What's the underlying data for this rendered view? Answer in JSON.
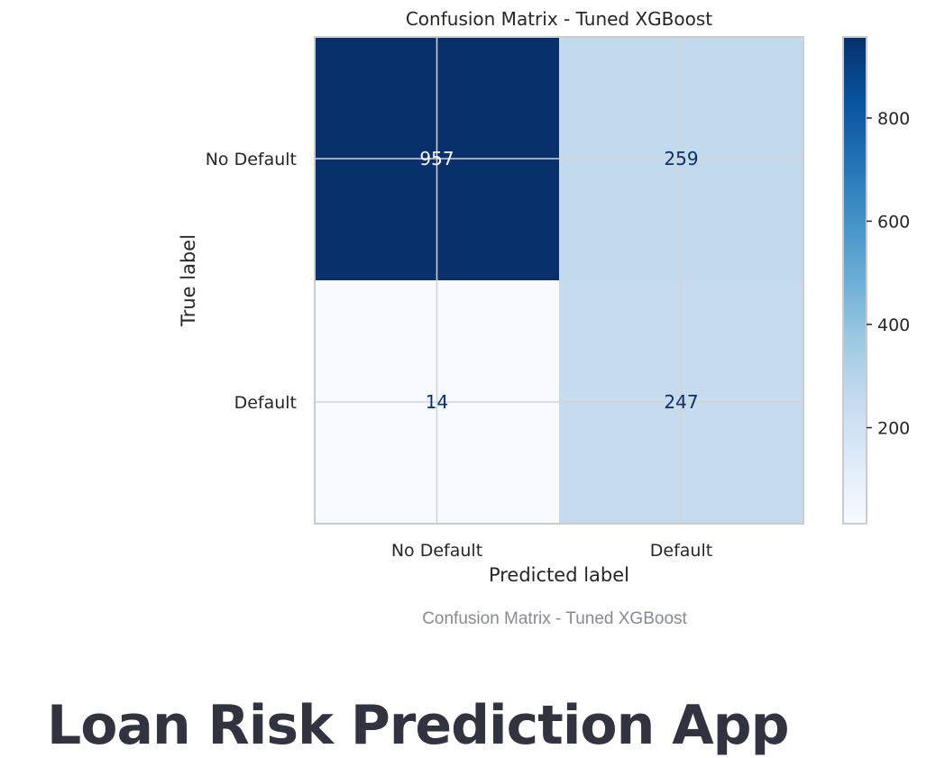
{
  "chart_data": {
    "type": "heatmap",
    "title": "Confusion Matrix - Tuned XGBoost",
    "xlabel": "Predicted label",
    "ylabel": "True label",
    "x_categories": [
      "No Default",
      "Default"
    ],
    "y_categories": [
      "No Default",
      "Default"
    ],
    "values": [
      [
        957,
        259
      ],
      [
        14,
        247
      ]
    ],
    "colormap": "Blues",
    "colorbar": {
      "ticks": [
        200,
        400,
        600,
        800
      ],
      "range": [
        14,
        957
      ]
    },
    "grid": true
  },
  "caption": "Confusion Matrix - Tuned XGBoost",
  "app_title": "Loan Risk Prediction App",
  "colors": {
    "low": "#f7fbff",
    "mid": "#c3daee",
    "high": "#08306b",
    "text_dark": "#31333f",
    "caption": "#878a93",
    "axis_text": "#262626"
  }
}
